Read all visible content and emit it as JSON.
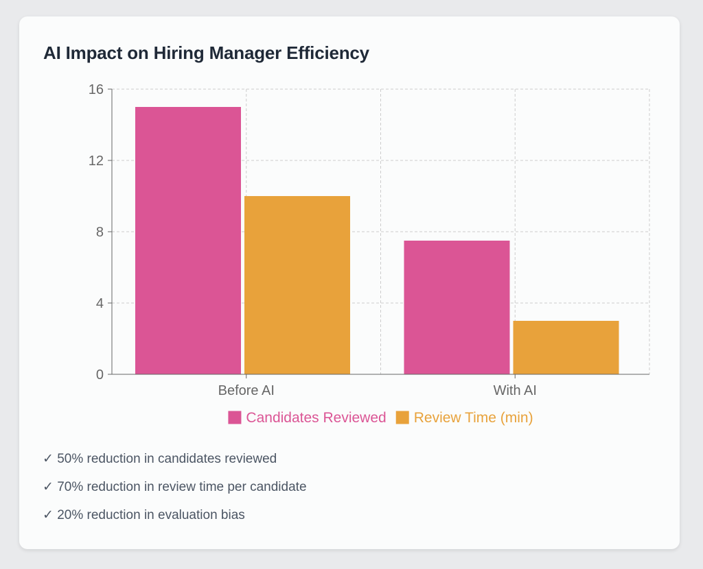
{
  "title": "AI Impact on Hiring Manager Efficiency",
  "chart_data": {
    "type": "bar",
    "categories": [
      "Before AI",
      "With AI"
    ],
    "series": [
      {
        "name": "Candidates Reviewed",
        "values": [
          15,
          7.5
        ],
        "color": "#db5595"
      },
      {
        "name": "Review Time (min)",
        "values": [
          10,
          3
        ],
        "color": "#e8a23b"
      }
    ],
    "ylim": [
      0,
      16
    ],
    "yticks": [
      0,
      4,
      8,
      12,
      16
    ],
    "grid": true,
    "legend": "bottom"
  },
  "insights": [
    "✓ 50% reduction in candidates reviewed",
    "✓ 70% reduction in review time per candidate",
    "✓ 20% reduction in evaluation bias"
  ]
}
